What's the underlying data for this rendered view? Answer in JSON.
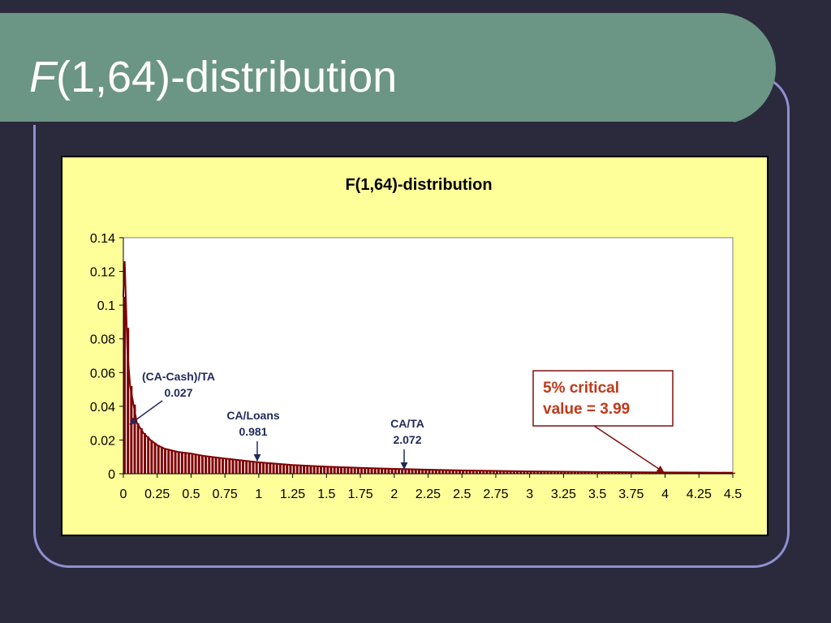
{
  "slide": {
    "title_italic": "F",
    "title_rest": "(1,64)-distribution"
  },
  "chart_data": {
    "type": "bar",
    "title": "F(1,64)-distribution",
    "xlabel": "",
    "ylabel": "",
    "xlim": [
      0,
      4.5
    ],
    "ylim": [
      0,
      0.14
    ],
    "x_ticks": [
      "0",
      "0.25",
      "0.5",
      "0.75",
      "1",
      "1.25",
      "1.5",
      "1.75",
      "2",
      "2.25",
      "2.5",
      "2.75",
      "3",
      "3.25",
      "3.5",
      "3.75",
      "4",
      "4.25",
      "4.5"
    ],
    "y_ticks": [
      "0",
      "0.02",
      "0.04",
      "0.06",
      "0.08",
      "0.1",
      "0.12",
      "0.14"
    ],
    "bar_color": "#7f0000",
    "series": [
      {
        "x": [
          0,
          0.01,
          0.02,
          0.03,
          0.05,
          0.1,
          0.15,
          0.2,
          0.25,
          0.3,
          0.4,
          0.5,
          0.6,
          0.75,
          1,
          1.25,
          1.5,
          1.75,
          2,
          2.25,
          2.5,
          2.75,
          3,
          3.25,
          3.5,
          3.75,
          4,
          4.25,
          4.5
        ],
        "values": [
          0.105,
          0.126,
          0.1,
          0.073,
          0.052,
          0.03,
          0.024,
          0.02,
          0.017,
          0.015,
          0.013,
          0.012,
          0.0105,
          0.009,
          0.0068,
          0.0052,
          0.0042,
          0.0035,
          0.0029,
          0.0024,
          0.002,
          0.0017,
          0.0014,
          0.0012,
          0.001,
          0.0009,
          0.0008,
          0.0007,
          0.0006
        ]
      }
    ],
    "annotations": [
      {
        "line1": "(CA-Cash)/TA",
        "line2": "0.027",
        "x": 0.027,
        "color": "#1f2a5a"
      },
      {
        "line1": "CA/Loans",
        "line2": "0.981",
        "x": 0.981,
        "color": "#1f2a5a"
      },
      {
        "line1": "CA/TA",
        "line2": "2.072",
        "x": 2.072,
        "color": "#1f2a5a"
      }
    ],
    "critical": {
      "line1": "5% critical",
      "line2": "value = 3.99",
      "x": 3.99,
      "color": "#c0391b"
    },
    "grid": false,
    "legend": "none"
  }
}
